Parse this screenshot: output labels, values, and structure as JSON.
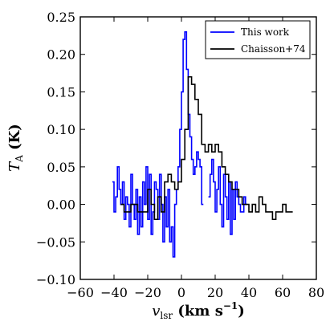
{
  "chart_data": {
    "type": "line",
    "xlabel_main": "v",
    "xlabel_sub": "lsr",
    "xlabel_unit": " (km s",
    "xlabel_exp": "−1",
    "xlabel_close": ")",
    "ylabel_main": "T",
    "ylabel_sub": "A",
    "ylabel_unit": " (K)",
    "xlim": [
      -60,
      80
    ],
    "ylim": [
      -0.1,
      0.25
    ],
    "x_ticks": [
      -60,
      -40,
      -20,
      0,
      20,
      40,
      60,
      80
    ],
    "x_tick_labels": [
      "−60",
      "−40",
      "−20",
      "0",
      "20",
      "40",
      "60",
      "80"
    ],
    "y_ticks": [
      -0.1,
      -0.05,
      0.0,
      0.05,
      0.1,
      0.15,
      0.2,
      0.25
    ],
    "y_tick_labels": [
      "−0.10",
      "−0.05",
      "0.00",
      "0.05",
      "0.10",
      "0.15",
      "0.20",
      "0.25"
    ],
    "legend_position": "top-right",
    "series": [
      {
        "name": "This work",
        "color": "#0000ff",
        "step": true,
        "x": [
          -41,
          -40,
          -39,
          -38,
          -37,
          -36,
          -35,
          -34,
          -33,
          -32,
          -31,
          -30,
          -29,
          -28,
          -27,
          -26,
          -25,
          -24,
          -23,
          -22,
          -21,
          -20,
          -19,
          -18,
          -17,
          -16,
          -15,
          -14,
          -13,
          -12,
          -11,
          -10,
          -9,
          -8,
          -7,
          -6,
          -5,
          -4,
          -3,
          -2,
          -1,
          0,
          1,
          2,
          3,
          4,
          5,
          6,
          7,
          8,
          9,
          10,
          11,
          12
        ],
        "y": [
          0.03,
          -0.01,
          0.01,
          0.05,
          0.02,
          0.0,
          0.03,
          -0.02,
          0.01,
          0.0,
          -0.03,
          0.04,
          0.0,
          -0.02,
          0.02,
          -0.04,
          0.01,
          -0.03,
          0.03,
          0.0,
          0.05,
          -0.02,
          0.04,
          -0.04,
          -0.01,
          0.03,
          0.02,
          -0.02,
          0.04,
          0.0,
          -0.05,
          0.01,
          -0.03,
          0.02,
          -0.05,
          -0.03,
          -0.07,
          0.0,
          0.02,
          0.05,
          0.1,
          0.15,
          0.22,
          0.23,
          0.18,
          0.12,
          0.09,
          0.06,
          0.04,
          0.05,
          0.07,
          0.06,
          0.05,
          0.0
        ]
      },
      {
        "name": "This work",
        "color": "#0000ff",
        "step": true,
        "x": [
          16,
          17,
          18,
          19,
          20,
          21,
          22,
          23,
          24,
          25,
          26,
          27,
          28,
          29,
          30,
          31,
          32,
          33,
          34,
          35,
          36,
          37,
          38
        ],
        "y": [
          0.01,
          0.04,
          0.06,
          0.03,
          -0.01,
          0.02,
          0.05,
          0.0,
          -0.03,
          0.04,
          0.01,
          -0.02,
          0.03,
          -0.04,
          0.02,
          -0.02,
          0.03,
          0.01,
          0.0,
          -0.01,
          -0.01,
          0.01,
          0.0
        ]
      },
      {
        "name": "Chaisson+74",
        "color": "#000000",
        "step": true,
        "x": [
          -36,
          -34,
          -32,
          -30,
          -28,
          -26,
          -24,
          -22,
          -20,
          -18,
          -16,
          -14,
          -12,
          -10,
          -8,
          -6,
          -4,
          -2,
          0,
          2,
          4,
          6,
          8,
          10,
          12,
          14,
          16,
          18,
          20,
          22,
          24,
          26,
          28,
          30,
          32,
          34,
          36,
          38,
          40,
          42,
          44,
          46,
          48,
          50,
          52,
          54,
          56,
          58,
          60,
          62,
          64
        ],
        "y": [
          0.0,
          -0.01,
          -0.01,
          0.0,
          0.0,
          -0.01,
          -0.01,
          -0.01,
          0.02,
          0.0,
          -0.02,
          0.01,
          -0.01,
          0.03,
          0.04,
          0.03,
          0.02,
          0.03,
          0.06,
          0.1,
          0.17,
          0.16,
          0.14,
          0.12,
          0.08,
          0.07,
          0.08,
          0.07,
          0.08,
          0.07,
          0.05,
          0.04,
          0.03,
          0.02,
          0.02,
          0.01,
          0.0,
          0.0,
          -0.01,
          0.0,
          -0.01,
          0.01,
          0.0,
          -0.01,
          -0.01,
          -0.02,
          -0.01,
          -0.01,
          0.0,
          -0.01,
          -0.01
        ]
      }
    ],
    "legend": [
      {
        "label": "This work",
        "color": "#0000ff"
      },
      {
        "label": "Chaisson+74",
        "color": "#000000"
      }
    ]
  }
}
